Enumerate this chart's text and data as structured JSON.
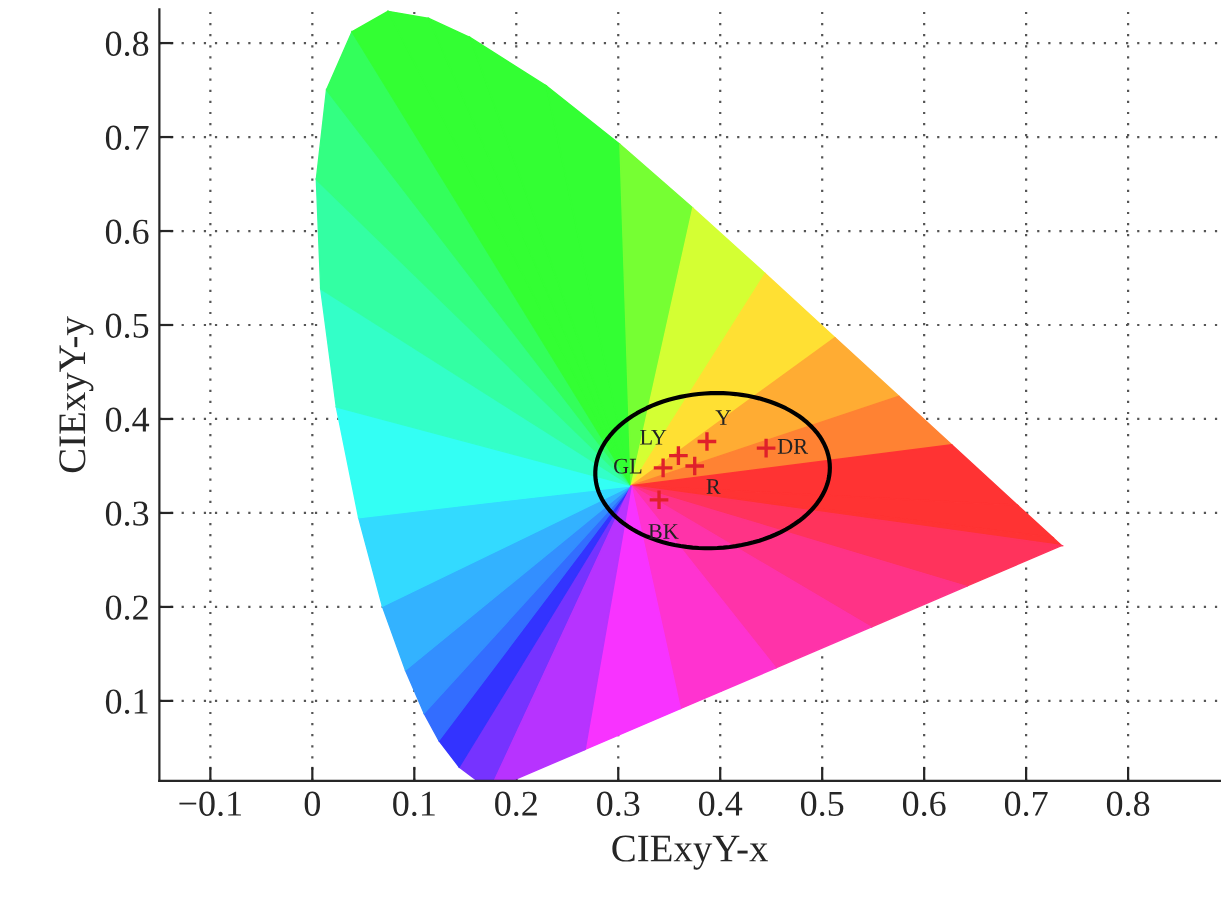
{
  "chart_data": {
    "type": "scatter",
    "xlabel": "CIExyY-x",
    "ylabel": "CIExyY-y",
    "x": [
      0.387,
      0.359,
      0.344,
      0.375,
      0.445,
      0.34
    ],
    "series": [
      {
        "color": "#e0202a",
        "values": [
          0.376,
          0.361,
          0.348,
          0.35,
          0.369,
          0.314
        ]
      }
    ],
    "marker": "cross",
    "annotations": [
      {
        "text": "Y",
        "x": 0.387,
        "y": 0.376
      },
      {
        "text": "LY",
        "x": 0.359,
        "y": 0.361
      },
      {
        "text": "GL",
        "x": 0.344,
        "y": 0.348
      },
      {
        "text": "R",
        "x": 0.375,
        "y": 0.35
      },
      {
        "text": "DR",
        "x": 0.445,
        "y": 0.369
      },
      {
        "text": "BK",
        "x": 0.34,
        "y": 0.314
      }
    ],
    "xlim": [
      -0.15,
      0.89
    ],
    "ylim": [
      0.015,
      0.836
    ],
    "xticks": [
      {
        "value": -0.1,
        "label": "−0.1"
      },
      0,
      0.1,
      0.2,
      0.3,
      0.4,
      0.5,
      0.6,
      0.7,
      0.8
    ],
    "yticks": [
      0.1,
      0.2,
      0.3,
      0.4,
      0.5,
      0.6,
      0.7,
      0.8
    ],
    "grid": true
  }
}
